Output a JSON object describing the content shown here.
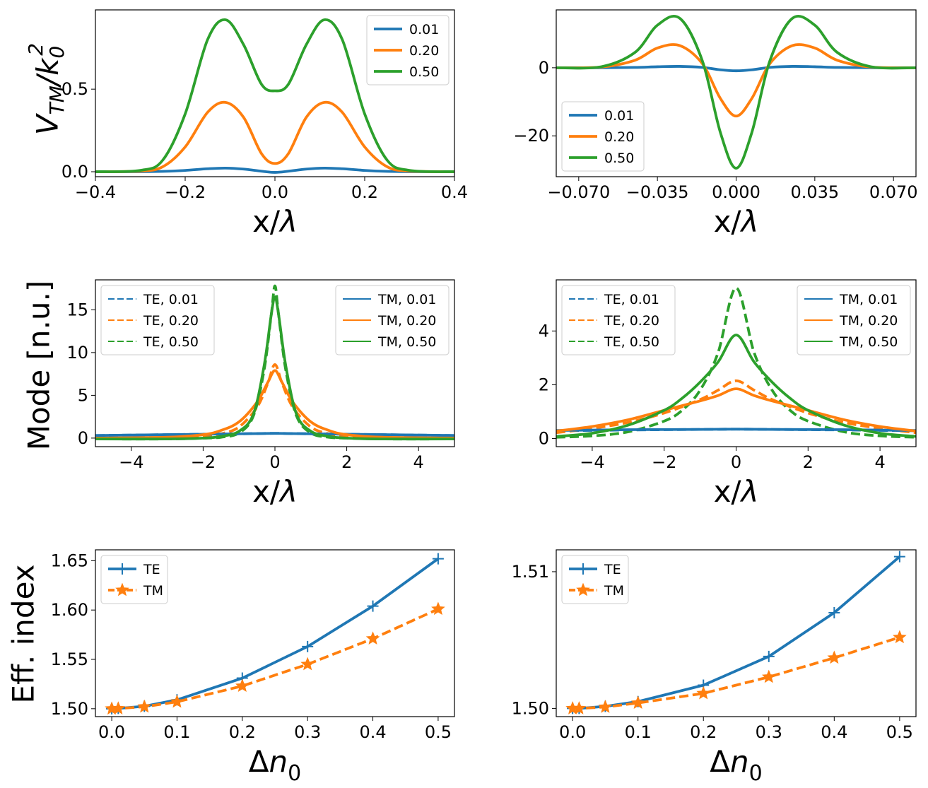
{
  "colors": {
    "c0": "#1f77b4",
    "c1": "#ff7f0e",
    "c2": "#2ca02c"
  },
  "y_titles": {
    "row0": "V_TM/k_0^2",
    "row1": "Mode [n.u.]",
    "row2": "Eff. index"
  },
  "chart_data": [
    {
      "id": "p00",
      "type": "line",
      "xlabel": "x/λ",
      "ylabel": "V_TM/k_0^2",
      "xlim": [
        -0.4,
        0.4
      ],
      "ylim": [
        -0.03,
        0.98
      ],
      "xticks": [
        -0.4,
        -0.2,
        0.0,
        0.2,
        0.4
      ],
      "xticklabels": [
        "−0.4",
        "−0.2",
        "0.0",
        "0.2",
        "0.4"
      ],
      "yticks": [
        0.0,
        0.5
      ],
      "yticklabels": [
        "0.0",
        "0.5"
      ],
      "legend": "top-right",
      "series": [
        {
          "name": "0.01",
          "color": "c0",
          "dash": false,
          "marker": null,
          "x": [
            -0.4,
            -0.3,
            -0.25,
            -0.2,
            -0.15,
            -0.11,
            -0.07,
            -0.03,
            0,
            0.03,
            0.07,
            0.11,
            0.15,
            0.2,
            0.25,
            0.3,
            0.4
          ],
          "y": [
            0,
            0,
            0.002,
            0.008,
            0.018,
            0.022,
            0.016,
            0.003,
            -0.004,
            0.003,
            0.016,
            0.022,
            0.018,
            0.008,
            0.002,
            0,
            0
          ]
        },
        {
          "name": "0.20",
          "color": "c1",
          "dash": false,
          "marker": null,
          "x": [
            -0.4,
            -0.3,
            -0.25,
            -0.2,
            -0.15,
            -0.11,
            -0.07,
            -0.03,
            0,
            0.03,
            0.07,
            0.11,
            0.15,
            0.2,
            0.25,
            0.3,
            0.4
          ],
          "y": [
            0,
            0.004,
            0.03,
            0.15,
            0.36,
            0.42,
            0.33,
            0.11,
            0.05,
            0.11,
            0.33,
            0.42,
            0.36,
            0.15,
            0.03,
            0.004,
            0
          ]
        },
        {
          "name": "0.50",
          "color": "c2",
          "dash": false,
          "marker": null,
          "x": [
            -0.4,
            -0.3,
            -0.25,
            -0.2,
            -0.15,
            -0.11,
            -0.07,
            -0.03,
            0,
            0.03,
            0.07,
            0.11,
            0.15,
            0.2,
            0.25,
            0.3,
            0.4
          ],
          "y": [
            0,
            0.008,
            0.07,
            0.35,
            0.8,
            0.92,
            0.77,
            0.53,
            0.49,
            0.53,
            0.77,
            0.92,
            0.8,
            0.35,
            0.07,
            0.008,
            0
          ]
        }
      ]
    },
    {
      "id": "p01",
      "type": "line",
      "xlabel": "x/λ",
      "ylabel": "",
      "xlim": [
        -0.08,
        0.08
      ],
      "ylim": [
        -32,
        17
      ],
      "xticks": [
        -0.07,
        -0.035,
        0.0,
        0.035,
        0.07
      ],
      "xticklabels": [
        "−0.070",
        "−0.035",
        "0.000",
        "0.035",
        "0.070"
      ],
      "yticks": [
        0,
        -20
      ],
      "yticklabels": [
        "0",
        "−20"
      ],
      "legend": "bottom-left",
      "series": [
        {
          "name": "0.01",
          "color": "c0",
          "dash": false,
          "marker": null,
          "x": [
            -0.08,
            -0.06,
            -0.045,
            -0.035,
            -0.025,
            -0.015,
            -0.007,
            0,
            0.007,
            0.015,
            0.025,
            0.035,
            0.045,
            0.06,
            0.08
          ],
          "y": [
            0,
            0,
            0.1,
            0.3,
            0.4,
            0.1,
            -0.6,
            -0.9,
            -0.6,
            0.1,
            0.4,
            0.3,
            0.1,
            0,
            0
          ]
        },
        {
          "name": "0.20",
          "color": "c1",
          "dash": false,
          "marker": null,
          "x": [
            -0.08,
            -0.06,
            -0.045,
            -0.035,
            -0.025,
            -0.015,
            -0.007,
            0,
            0.007,
            0.015,
            0.025,
            0.035,
            0.045,
            0.06,
            0.08
          ],
          "y": [
            0,
            0.2,
            2.2,
            5.8,
            6.5,
            1.2,
            -9,
            -14.2,
            -9,
            1.2,
            6.5,
            5.8,
            2.2,
            0.2,
            0
          ]
        },
        {
          "name": "0.50",
          "color": "c2",
          "dash": false,
          "marker": null,
          "x": [
            -0.08,
            -0.06,
            -0.045,
            -0.035,
            -0.025,
            -0.015,
            -0.007,
            0,
            0.007,
            0.015,
            0.025,
            0.035,
            0.045,
            0.06,
            0.08
          ],
          "y": [
            0,
            0.3,
            4.5,
            12.5,
            14.5,
            2,
            -19,
            -29.5,
            -19,
            2,
            14.5,
            12.5,
            4.5,
            0.3,
            0
          ]
        }
      ]
    },
    {
      "id": "p10",
      "type": "line",
      "xlabel": "x/λ",
      "ylabel": "Mode [n.u.]",
      "xlim": [
        -5,
        5
      ],
      "ylim": [
        -1,
        18.5
      ],
      "xticks": [
        -4,
        -2,
        0,
        2,
        4
      ],
      "xticklabels": [
        "−4",
        "−2",
        "0",
        "2",
        "4"
      ],
      "yticks": [
        0,
        5,
        10,
        15
      ],
      "yticklabels": [
        "0",
        "5",
        "10",
        "15"
      ],
      "legend": "split",
      "series": [
        {
          "name": "TE, 0.01",
          "color": "c0",
          "dash": true,
          "marker": null,
          "x": [
            -5,
            -3,
            -1.5,
            -0.5,
            0,
            0.5,
            1.5,
            3,
            5
          ],
          "y": [
            0.3,
            0.4,
            0.48,
            0.53,
            0.56,
            0.53,
            0.48,
            0.4,
            0.3
          ]
        },
        {
          "name": "TE, 0.20",
          "color": "c1",
          "dash": true,
          "marker": null,
          "x": [
            -5,
            -3,
            -2,
            -1.5,
            -1,
            -0.5,
            -0.2,
            0,
            0.2,
            0.5,
            1,
            1.5,
            2,
            3,
            5
          ],
          "y": [
            0,
            0.03,
            0.2,
            0.5,
            1.3,
            3.6,
            6.4,
            8.6,
            6.4,
            3.6,
            1.3,
            0.5,
            0.2,
            0.03,
            0
          ]
        },
        {
          "name": "TE, 0.50",
          "color": "c2",
          "dash": true,
          "marker": null,
          "x": [
            -5,
            -3,
            -2,
            -1.5,
            -1,
            -0.6,
            -0.3,
            -0.1,
            0,
            0.1,
            0.3,
            0.6,
            1,
            1.5,
            2,
            3,
            5
          ],
          "y": [
            -0.1,
            -0.1,
            0,
            0.1,
            0.6,
            2.6,
            8,
            14.5,
            17.8,
            14.5,
            8,
            2.6,
            0.6,
            0.1,
            0,
            -0.1,
            -0.1
          ]
        },
        {
          "name": "TM, 0.01",
          "color": "c0",
          "dash": false,
          "marker": null,
          "x": [
            -5,
            -3,
            -1.5,
            -0.5,
            0,
            0.5,
            1.5,
            3,
            5
          ],
          "y": [
            0.3,
            0.4,
            0.48,
            0.53,
            0.55,
            0.53,
            0.48,
            0.4,
            0.3
          ]
        },
        {
          "name": "TM, 0.20",
          "color": "c1",
          "dash": false,
          "marker": null,
          "x": [
            -5,
            -3,
            -2,
            -1.5,
            -1,
            -0.5,
            -0.2,
            0,
            0.2,
            0.5,
            1,
            1.5,
            2,
            3,
            5
          ],
          "y": [
            0,
            0.1,
            0.4,
            0.9,
            1.9,
            4.2,
            6.5,
            7.9,
            6.5,
            4.2,
            1.9,
            0.9,
            0.4,
            0.1,
            0
          ]
        },
        {
          "name": "TM, 0.50",
          "color": "c2",
          "dash": false,
          "marker": null,
          "x": [
            -5,
            -3,
            -2,
            -1.5,
            -1,
            -0.6,
            -0.3,
            -0.1,
            0,
            0.1,
            0.3,
            0.6,
            1,
            1.5,
            2,
            3,
            5
          ],
          "y": [
            -0.1,
            -0.1,
            0,
            0.2,
            0.8,
            2.8,
            8.5,
            14.5,
            16.5,
            14.5,
            8.5,
            2.8,
            0.8,
            0.2,
            0,
            -0.1,
            -0.1
          ]
        }
      ]
    },
    {
      "id": "p11",
      "type": "line",
      "xlabel": "x/λ",
      "ylabel": "",
      "xlim": [
        -5,
        5
      ],
      "ylim": [
        -0.3,
        5.9
      ],
      "xticks": [
        -4,
        -2,
        0,
        2,
        4
      ],
      "xticklabels": [
        "−4",
        "−2",
        "0",
        "2",
        "4"
      ],
      "yticks": [
        0,
        2,
        4
      ],
      "yticklabels": [
        "0",
        "2",
        "4"
      ],
      "legend": "split",
      "series": [
        {
          "name": "TE, 0.01",
          "color": "c0",
          "dash": true,
          "marker": null,
          "x": [
            -5,
            -3,
            -1,
            0,
            1,
            3,
            5
          ],
          "y": [
            0.29,
            0.32,
            0.34,
            0.35,
            0.34,
            0.32,
            0.29
          ]
        },
        {
          "name": "TE, 0.20",
          "color": "c1",
          "dash": true,
          "marker": null,
          "x": [
            -5,
            -4,
            -3,
            -2,
            -1,
            -0.5,
            0,
            0.5,
            1,
            2,
            3,
            4,
            5
          ],
          "y": [
            0.22,
            0.38,
            0.6,
            0.95,
            1.45,
            1.8,
            2.15,
            1.8,
            1.45,
            0.95,
            0.6,
            0.38,
            0.22
          ]
        },
        {
          "name": "TE, 0.50",
          "color": "c2",
          "dash": true,
          "marker": null,
          "x": [
            -5,
            -4,
            -3,
            -2,
            -1.5,
            -1,
            -0.5,
            0,
            0.5,
            1,
            1.5,
            2,
            3,
            4,
            5
          ],
          "y": [
            0.05,
            0.1,
            0.25,
            0.65,
            1.05,
            1.8,
            3.2,
            5.6,
            3.2,
            1.8,
            1.05,
            0.65,
            0.25,
            0.1,
            0.05
          ]
        },
        {
          "name": "TM, 0.01",
          "color": "c0",
          "dash": false,
          "marker": null,
          "x": [
            -5,
            -3,
            -1,
            0,
            1,
            3,
            5
          ],
          "y": [
            0.3,
            0.33,
            0.34,
            0.35,
            0.34,
            0.33,
            0.3
          ]
        },
        {
          "name": "TM, 0.20",
          "color": "c1",
          "dash": false,
          "marker": null,
          "x": [
            -5,
            -4,
            -3,
            -2,
            -1,
            -0.5,
            0,
            0.5,
            1,
            2,
            3,
            4,
            5
          ],
          "y": [
            0.28,
            0.45,
            0.7,
            1.05,
            1.4,
            1.6,
            1.85,
            1.6,
            1.4,
            1.05,
            0.7,
            0.45,
            0.28
          ]
        },
        {
          "name": "TM, 0.50",
          "color": "c2",
          "dash": false,
          "marker": null,
          "x": [
            -5,
            -4,
            -3,
            -2,
            -1.5,
            -1,
            -0.5,
            0,
            0.5,
            1,
            1.5,
            2,
            3,
            4,
            5
          ],
          "y": [
            0.08,
            0.2,
            0.5,
            1.05,
            1.5,
            2.1,
            2.85,
            3.85,
            2.85,
            2.1,
            1.5,
            1.05,
            0.5,
            0.2,
            0.08
          ]
        }
      ]
    },
    {
      "id": "p20",
      "type": "line",
      "xlabel": "Δn_0",
      "ylabel": "Eff. index",
      "xlim": [
        -0.025,
        0.525
      ],
      "ylim": [
        1.492,
        1.661
      ],
      "xticks": [
        0.0,
        0.1,
        0.2,
        0.3,
        0.4,
        0.5
      ],
      "xticklabels": [
        "0.0",
        "0.1",
        "0.2",
        "0.3",
        "0.4",
        "0.5"
      ],
      "yticks": [
        1.5,
        1.55,
        1.6,
        1.65
      ],
      "yticklabels": [
        "1.50",
        "1.55",
        "1.60",
        "1.65"
      ],
      "legend": "top-left",
      "series": [
        {
          "name": "TE",
          "color": "c0",
          "dash": false,
          "marker": "plus",
          "x": [
            0.0,
            0.01,
            0.05,
            0.1,
            0.2,
            0.3,
            0.4,
            0.5
          ],
          "y": [
            1.5,
            1.5003,
            1.5025,
            1.509,
            1.531,
            1.563,
            1.604,
            1.652
          ]
        },
        {
          "name": "TM",
          "color": "c1",
          "dash": true,
          "marker": "star",
          "x": [
            0.0,
            0.01,
            0.05,
            0.1,
            0.2,
            0.3,
            0.4,
            0.5
          ],
          "y": [
            1.5,
            1.5002,
            1.502,
            1.507,
            1.523,
            1.545,
            1.571,
            1.601
          ]
        }
      ]
    },
    {
      "id": "p21",
      "type": "line",
      "xlabel": "Δn_0",
      "ylabel": "",
      "xlim": [
        -0.025,
        0.525
      ],
      "ylim": [
        1.4994,
        1.5116
      ],
      "xticks": [
        0.0,
        0.1,
        0.2,
        0.3,
        0.4,
        0.5
      ],
      "xticklabels": [
        "0.0",
        "0.1",
        "0.2",
        "0.3",
        "0.4",
        "0.5"
      ],
      "yticks": [
        1.5,
        1.51
      ],
      "yticklabels": [
        "1.50",
        "1.51"
      ],
      "legend": "top-left",
      "series": [
        {
          "name": "TE",
          "color": "c0",
          "dash": false,
          "marker": "plus",
          "x": [
            0.0,
            0.01,
            0.05,
            0.1,
            0.2,
            0.3,
            0.4,
            0.5
          ],
          "y": [
            1.5,
            1.5,
            1.50015,
            1.5005,
            1.5017,
            1.5038,
            1.507,
            1.5111
          ]
        },
        {
          "name": "TM",
          "color": "c1",
          "dash": true,
          "marker": "star",
          "x": [
            0.0,
            0.01,
            0.05,
            0.1,
            0.2,
            0.3,
            0.4,
            0.5
          ],
          "y": [
            1.5,
            1.5,
            1.5001,
            1.5004,
            1.5011,
            1.5023,
            1.5037,
            1.5052
          ]
        }
      ]
    }
  ]
}
